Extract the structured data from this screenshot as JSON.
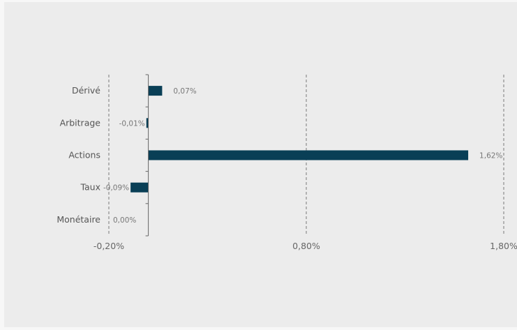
{
  "chart_data": {
    "type": "bar",
    "orientation": "horizontal",
    "categories": [
      "Dérivé",
      "Arbitrage",
      "Actions",
      "Taux",
      "Monétaire"
    ],
    "values": [
      0.07,
      -0.01,
      1.62,
      -0.09,
      0.0
    ],
    "data_labels": [
      "0,07%",
      "-0,01%",
      "1,62%",
      "-0,09%",
      "0,00%"
    ],
    "xlim": [
      -0.2,
      1.8
    ],
    "xticks": [
      -0.2,
      0.8,
      1.8
    ],
    "xtick_labels": [
      "-0,20%",
      "0,80%",
      "1,80%"
    ],
    "grid": "vertical dashed at x ticks",
    "bar_color": "#093f56",
    "grid_color": "#777777",
    "axis_color": "#666666"
  }
}
